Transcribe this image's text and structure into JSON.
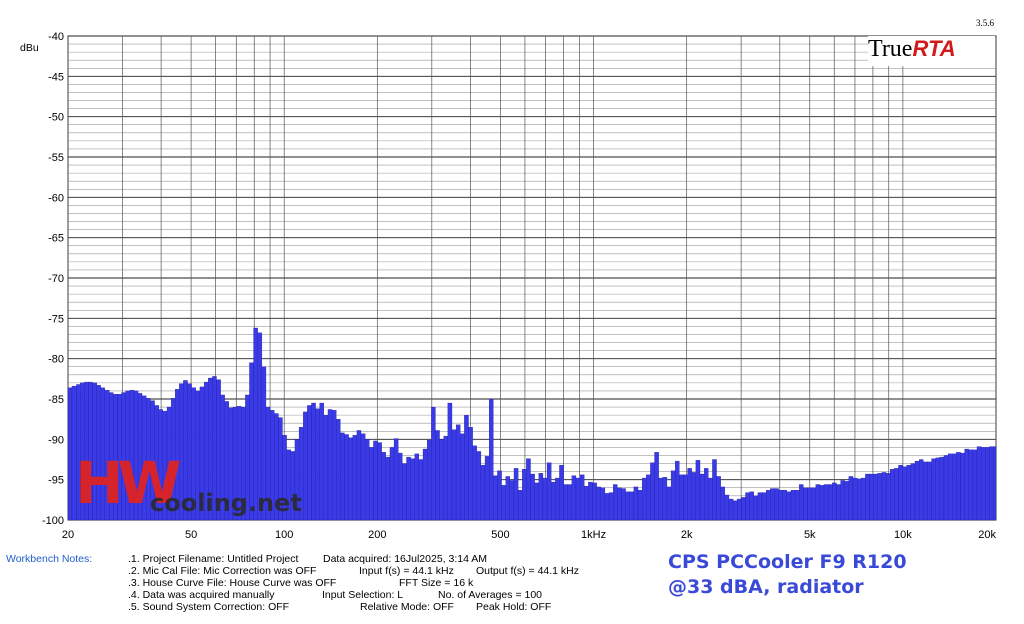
{
  "chart_data": {
    "type": "bar",
    "title": "",
    "xlabel": "",
    "ylabel": "dBu",
    "x_scale": "log",
    "xlim": [
      20,
      20000
    ],
    "ylim": [
      -100,
      -40
    ],
    "grid": true,
    "x_ticks": [
      {
        "value": 20,
        "label": "20"
      },
      {
        "value": 50,
        "label": "50"
      },
      {
        "value": 100,
        "label": "100"
      },
      {
        "value": 200,
        "label": "200"
      },
      {
        "value": 500,
        "label": "500"
      },
      {
        "value": 1000,
        "label": "1kHz"
      },
      {
        "value": 2000,
        "label": "2k"
      },
      {
        "value": 5000,
        "label": "5k"
      },
      {
        "value": 10000,
        "label": "10k"
      },
      {
        "value": 20000,
        "label": "20k"
      }
    ],
    "y_ticks": [
      -40,
      -45,
      -50,
      -55,
      -60,
      -65,
      -70,
      -75,
      -80,
      -85,
      -90,
      -95,
      -100
    ],
    "series": [
      {
        "color": "#3a3ae8",
        "points": [
          [
            20.0,
            -83.6
          ],
          [
            20.6,
            -83.4
          ],
          [
            21.3,
            -83.2
          ],
          [
            21.9,
            -83.0
          ],
          [
            22.6,
            -82.9
          ],
          [
            23.3,
            -82.9
          ],
          [
            24.0,
            -83.0
          ],
          [
            24.8,
            -83.3
          ],
          [
            25.5,
            -83.6
          ],
          [
            26.3,
            -83.9
          ],
          [
            27.2,
            -84.2
          ],
          [
            28.0,
            -84.4
          ],
          [
            28.9,
            -84.4
          ],
          [
            29.8,
            -84.2
          ],
          [
            30.7,
            -84.0
          ],
          [
            31.7,
            -83.9
          ],
          [
            32.7,
            -84.0
          ],
          [
            33.7,
            -84.3
          ],
          [
            34.7,
            -84.6
          ],
          [
            35.8,
            -84.9
          ],
          [
            36.9,
            -85.2
          ],
          [
            38.1,
            -85.8
          ],
          [
            39.3,
            -86.3
          ],
          [
            40.5,
            -86.5
          ],
          [
            41.8,
            -86.0
          ],
          [
            43.1,
            -84.9
          ],
          [
            44.4,
            -83.8
          ],
          [
            45.8,
            -83.1
          ],
          [
            47.2,
            -82.7
          ],
          [
            48.7,
            -83.1
          ],
          [
            50.2,
            -83.6
          ],
          [
            51.8,
            -84.0
          ],
          [
            53.4,
            -83.5
          ],
          [
            55.1,
            -82.9
          ],
          [
            56.8,
            -82.4
          ],
          [
            58.6,
            -82.2
          ],
          [
            60.4,
            -82.6
          ],
          [
            62.3,
            -84.5
          ],
          [
            64.2,
            -85.3
          ],
          [
            66.2,
            -86.1
          ],
          [
            68.3,
            -86.0
          ],
          [
            70.4,
            -85.9
          ],
          [
            72.6,
            -86.0
          ],
          [
            74.9,
            -84.5
          ],
          [
            77.2,
            -80.5
          ],
          [
            79.6,
            -76.2
          ],
          [
            82.1,
            -76.8
          ],
          [
            84.7,
            -81.0
          ],
          [
            87.3,
            -86.0
          ],
          [
            90.1,
            -86.4
          ],
          [
            92.9,
            -86.8
          ],
          [
            95.8,
            -87.3
          ],
          [
            98.7,
            -89.5
          ],
          [
            101.8,
            -91.3
          ],
          [
            105.0,
            -91.5
          ],
          [
            108.3,
            -90.0
          ],
          [
            111.7,
            -88.5
          ],
          [
            115.2,
            -86.6
          ],
          [
            118.8,
            -85.8
          ],
          [
            122.5,
            -85.5
          ],
          [
            126.3,
            -86.2
          ],
          [
            130.2,
            -85.5
          ],
          [
            134.3,
            -87.0
          ],
          [
            138.5,
            -86.3
          ],
          [
            142.8,
            -86.4
          ],
          [
            147.3,
            -87.5
          ],
          [
            151.9,
            -89.2
          ],
          [
            156.6,
            -89.4
          ],
          [
            161.5,
            -89.8
          ],
          [
            166.6,
            -89.5
          ],
          [
            171.8,
            -88.9
          ],
          [
            177.1,
            -89.3
          ],
          [
            182.7,
            -90.0
          ],
          [
            188.4,
            -91.0
          ],
          [
            194.3,
            -90.2
          ],
          [
            200.3,
            -90.4
          ],
          [
            206.6,
            -91.6
          ],
          [
            213.0,
            -92.2
          ],
          [
            219.7,
            -91.0
          ],
          [
            226.5,
            -89.9
          ],
          [
            233.6,
            -91.7
          ],
          [
            240.9,
            -93.0
          ],
          [
            248.5,
            -92.2
          ],
          [
            256.2,
            -92.4
          ],
          [
            264.3,
            -91.8
          ],
          [
            272.5,
            -92.5
          ],
          [
            281.0,
            -91.2
          ],
          [
            289.8,
            -90.1
          ],
          [
            298.9,
            -86.0
          ],
          [
            308.2,
            -88.9
          ],
          [
            317.8,
            -90.0
          ],
          [
            327.8,
            -89.6
          ],
          [
            338.0,
            -85.5
          ],
          [
            348.6,
            -88.8
          ],
          [
            359.5,
            -88.2
          ],
          [
            370.7,
            -89.3
          ],
          [
            382.3,
            -87.0
          ],
          [
            394.3,
            -88.5
          ],
          [
            406.6,
            -90.8
          ],
          [
            419.3,
            -91.5
          ],
          [
            432.4,
            -93.2
          ],
          [
            445.9,
            -92.1
          ],
          [
            459.8,
            -85.0
          ],
          [
            474.2,
            -94.5
          ],
          [
            489.0,
            -93.9
          ],
          [
            504.3,
            -95.7
          ],
          [
            520.1,
            -94.6
          ],
          [
            536.3,
            -95.1
          ],
          [
            553.1,
            -93.6
          ],
          [
            570.4,
            -96.3
          ],
          [
            588.2,
            -93.7
          ],
          [
            606.5,
            -92.4
          ],
          [
            625.5,
            -94.3
          ],
          [
            645.0,
            -95.4
          ],
          [
            665.2,
            -94.2
          ],
          [
            686.0,
            -94.8
          ],
          [
            707.4,
            -92.9
          ],
          [
            729.5,
            -95.3
          ],
          [
            752.3,
            -94.8
          ],
          [
            775.8,
            -93.2
          ],
          [
            800.1,
            -95.6
          ],
          [
            825.1,
            -95.6
          ],
          [
            850.8,
            -94.5
          ],
          [
            877.4,
            -94.8
          ],
          [
            904.9,
            -94.4
          ],
          [
            933.1,
            -95.8
          ],
          [
            962.3,
            -95.3
          ],
          [
            992.4,
            -95.4
          ],
          [
            1023.4,
            -95.9
          ],
          [
            1055.4,
            -96.0
          ],
          [
            1088.4,
            -96.7
          ],
          [
            1122.4,
            -96.6
          ],
          [
            1157.5,
            -95.6
          ],
          [
            1193.6,
            -96.0
          ],
          [
            1230.9,
            -96.1
          ],
          [
            1269.4,
            -96.5
          ],
          [
            1309.1,
            -96.5
          ],
          [
            1350.0,
            -95.9
          ],
          [
            1392.2,
            -96.3
          ],
          [
            1435.7,
            -94.8
          ],
          [
            1480.6,
            -94.4
          ],
          [
            1526.8,
            -92.9
          ],
          [
            1574.6,
            -91.6
          ],
          [
            1623.8,
            -94.8
          ],
          [
            1674.5,
            -94.7
          ],
          [
            1726.9,
            -95.9
          ],
          [
            1780.8,
            -93.9
          ],
          [
            1836.5,
            -92.7
          ],
          [
            1893.9,
            -94.4
          ],
          [
            1953.1,
            -94.4
          ],
          [
            2014.1,
            -93.6
          ],
          [
            2077.1,
            -94.1
          ],
          [
            2142.0,
            -92.6
          ],
          [
            2208.9,
            -94.3
          ],
          [
            2278.0,
            -93.6
          ],
          [
            2349.2,
            -94.8
          ],
          [
            2422.6,
            -92.5
          ],
          [
            2498.3,
            -94.6
          ],
          [
            2576.4,
            -95.9
          ],
          [
            2656.9,
            -96.9
          ],
          [
            2740.0,
            -97.4
          ],
          [
            2825.6,
            -97.6
          ],
          [
            2913.9,
            -97.4
          ],
          [
            3005.0,
            -97.2
          ],
          [
            3098.9,
            -96.6
          ],
          [
            3195.7,
            -96.5
          ],
          [
            3295.6,
            -97.0
          ],
          [
            3398.6,
            -96.6
          ],
          [
            3504.9,
            -96.6
          ],
          [
            3614.4,
            -96.3
          ],
          [
            3727.4,
            -96.1
          ],
          [
            3843.9,
            -96.1
          ],
          [
            3964.0,
            -96.3
          ],
          [
            4087.9,
            -96.3
          ],
          [
            4215.7,
            -96.5
          ],
          [
            4347.5,
            -96.3
          ],
          [
            4483.3,
            -96.3
          ],
          [
            4623.5,
            -95.6
          ],
          [
            4768.0,
            -96.0
          ],
          [
            4917.0,
            -96.0
          ],
          [
            5070.7,
            -96.0
          ],
          [
            5229.2,
            -95.6
          ],
          [
            5392.6,
            -95.7
          ],
          [
            5561.1,
            -95.6
          ],
          [
            5735.0,
            -95.6
          ],
          [
            5914.2,
            -95.4
          ],
          [
            6099.0,
            -95.6
          ],
          [
            6289.7,
            -95.1
          ],
          [
            6486.3,
            -95.2
          ],
          [
            6689.0,
            -94.6
          ],
          [
            6898.1,
            -94.8
          ],
          [
            7113.6,
            -94.9
          ],
          [
            7336.0,
            -94.8
          ],
          [
            7565.3,
            -94.3
          ],
          [
            7801.7,
            -94.3
          ],
          [
            8045.5,
            -94.3
          ],
          [
            8297.0,
            -94.2
          ],
          [
            8556.3,
            -94.1
          ],
          [
            8823.7,
            -94.2
          ],
          [
            9099.5,
            -93.7
          ],
          [
            9383.9,
            -93.6
          ],
          [
            9677.2,
            -93.2
          ],
          [
            9979.6,
            -93.4
          ],
          [
            10291.5,
            -93.2
          ],
          [
            10613.2,
            -93.0
          ],
          [
            10944.9,
            -92.7
          ],
          [
            11287.0,
            -92.5
          ],
          [
            11639.7,
            -92.8
          ],
          [
            12003.5,
            -92.8
          ],
          [
            12378.7,
            -92.4
          ],
          [
            12765.6,
            -92.3
          ],
          [
            13164.5,
            -92.2
          ],
          [
            13576.0,
            -92.0
          ],
          [
            14000.3,
            -91.8
          ],
          [
            14437.9,
            -91.8
          ],
          [
            14889.1,
            -91.6
          ],
          [
            15354.5,
            -91.7
          ],
          [
            15834.4,
            -91.2
          ],
          [
            16329.3,
            -91.3
          ],
          [
            16839.6,
            -91.3
          ],
          [
            17365.9,
            -90.9
          ],
          [
            17908.6,
            -91.0
          ],
          [
            18468.4,
            -91.0
          ],
          [
            19045.6,
            -90.9
          ],
          [
            19640.8,
            -90.9
          ]
        ]
      }
    ]
  },
  "labels": {
    "y_unit": "dBu",
    "x_ticks": [
      "20",
      "50",
      "100",
      "200",
      "500",
      "1kHz",
      "2k",
      "5k",
      "10k",
      "20k"
    ],
    "y_ticks": [
      "-40",
      "-45",
      "-50",
      "-55",
      "-60",
      "-65",
      "-70",
      "-75",
      "-80",
      "-85",
      "-90",
      "-95",
      "-100"
    ]
  },
  "logo": {
    "true_text": "True",
    "rta_text": "RTA",
    "version": "3.5.6"
  },
  "watermark": {
    "letters": "HW",
    "text": "cooling.net"
  },
  "notes": {
    "title": "Workbench Notes:",
    "items": [
      ".1. Project Filename: Untitled Project",
      ".2. Mic Cal File: Mic Correction was OFF",
      ".3. House Curve File: House Curve was OFF",
      ".4. Data was acquired manually",
      ".5. Sound System Correction: OFF"
    ],
    "data_acquired": "Data acquired: 16Jul2025, 3:14 AM",
    "input_fs": "Input f(s) = 44.1 kHz",
    "output_fs": "Output f(s) = 44.1 kHz",
    "fft_size": "FFT Size = 16 k",
    "input_selection": "Input Selection: L",
    "averages": "No. of Averages = 100",
    "relative_mode": "Relative Mode:  OFF",
    "peak_hold": "Peak Hold: OFF"
  },
  "caption": {
    "line1": "CPS PCCooler F9 R120",
    "line2": "@33 dBA, radiator"
  },
  "colors": {
    "bars": "#3a3ae8",
    "notes_title": "#1f5fc8",
    "caption": "#3a4ad8",
    "rta": "#d31a1a",
    "watermark": "#e4231e"
  }
}
